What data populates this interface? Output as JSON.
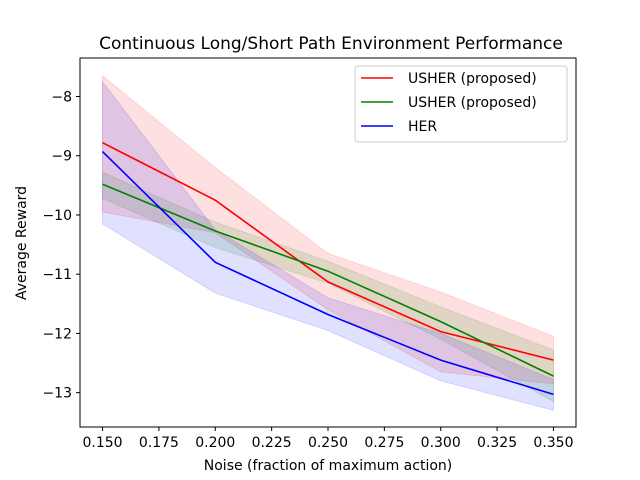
{
  "chart_data": {
    "type": "line",
    "title": "Continuous Long/Short Path Environment Performance",
    "xlabel": "Noise (fraction of maximum action)",
    "ylabel": "Average Reward",
    "x": [
      0.15,
      0.2,
      0.25,
      0.3,
      0.35
    ],
    "xlim": [
      0.14,
      0.36
    ],
    "ylim": [
      -13.58,
      -7.35
    ],
    "xticks": [
      "0.150",
      "0.175",
      "0.200",
      "0.225",
      "0.250",
      "0.275",
      "0.300",
      "0.325",
      "0.350"
    ],
    "xtick_values": [
      0.15,
      0.175,
      0.2,
      0.225,
      0.25,
      0.275,
      0.3,
      0.325,
      0.35
    ],
    "yticks": [
      "−8",
      "−9",
      "−10",
      "−11",
      "−12",
      "−13"
    ],
    "ytick_values": [
      -8,
      -9,
      -10,
      -11,
      -12,
      -13
    ],
    "grid": false,
    "legend_position": "top-right",
    "series": [
      {
        "name": "USHER (proposed)",
        "color": "#ff0000",
        "values": [
          -8.78,
          -9.75,
          -11.13,
          -11.97,
          -12.45
        ],
        "upper": [
          -7.65,
          -9.2,
          -10.65,
          -11.3,
          -12.05
        ],
        "lower": [
          -9.95,
          -10.3,
          -11.6,
          -12.65,
          -12.85
        ]
      },
      {
        "name": "USHER (proposed)",
        "color": "#008000",
        "values": [
          -9.48,
          -10.27,
          -10.95,
          -11.8,
          -12.72
        ],
        "upper": [
          -9.28,
          -10.12,
          -10.78,
          -11.55,
          -12.28
        ],
        "lower": [
          -9.72,
          -10.55,
          -11.15,
          -12.1,
          -13.15
        ]
      },
      {
        "name": "HER",
        "color": "#0000ff",
        "values": [
          -8.93,
          -10.8,
          -11.68,
          -12.45,
          -13.03
        ],
        "upper": [
          -7.75,
          -10.25,
          -11.4,
          -12.0,
          -12.78
        ],
        "lower": [
          -10.15,
          -11.32,
          -11.95,
          -12.8,
          -13.3
        ]
      }
    ]
  }
}
